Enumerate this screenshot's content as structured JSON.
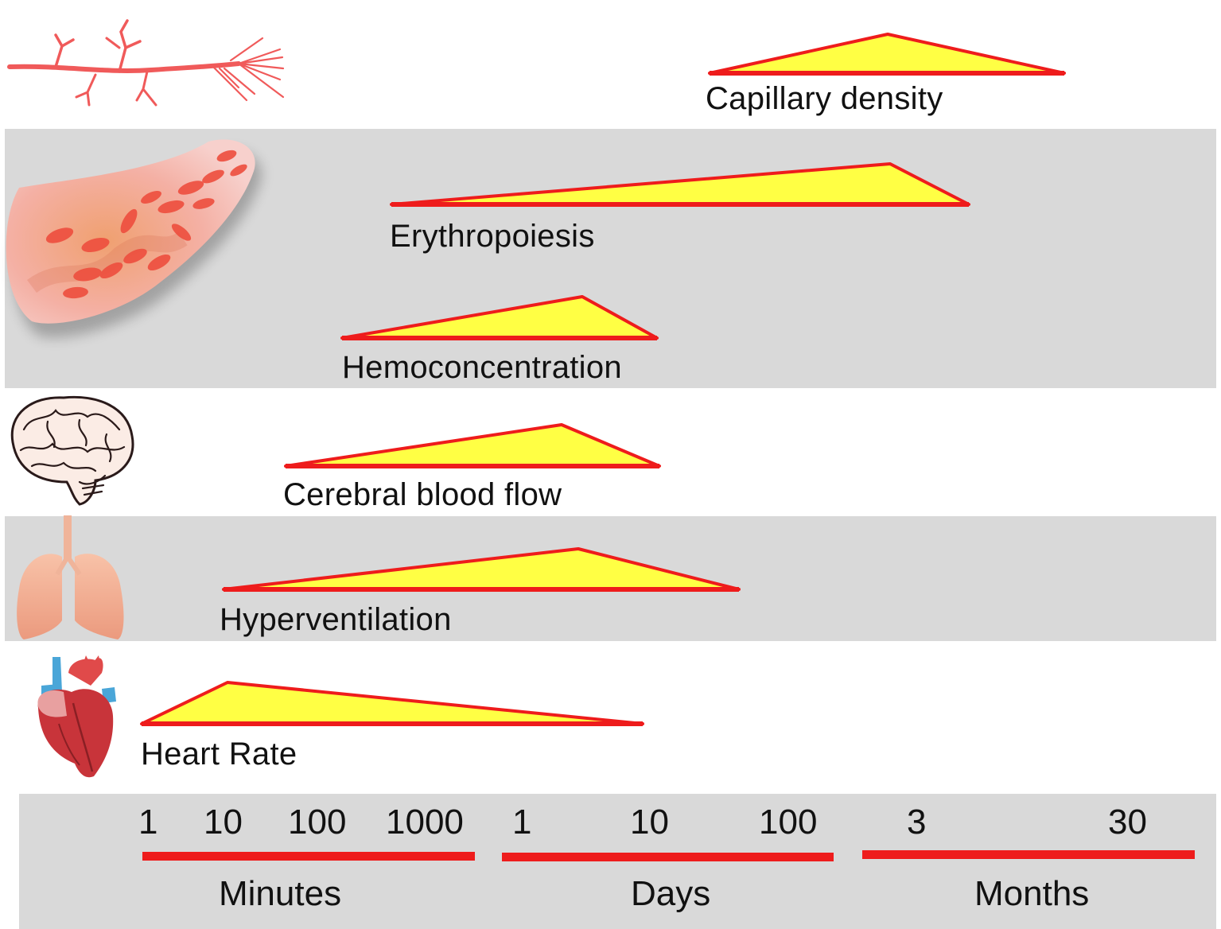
{
  "colors": {
    "band_gray": "#d9d9d9",
    "outline_red": "#ee1c1c",
    "fill_yellow": "#ffff44"
  },
  "rows": [
    {
      "id": "capillary",
      "label": "Capillary density",
      "icon": "capillary-icon"
    },
    {
      "id": "erythro",
      "label": "Erythropoiesis",
      "icon": "red-blood-cells-icon"
    },
    {
      "id": "hemo",
      "label": "Hemoconcentration",
      "icon": "red-blood-cells-icon"
    },
    {
      "id": "cbf",
      "label": "Cerebral blood flow",
      "icon": "brain-icon"
    },
    {
      "id": "hypervent",
      "label": "Hyperventilation",
      "icon": "lungs-icon"
    },
    {
      "id": "hr",
      "label": "Heart Rate",
      "icon": "heart-icon"
    }
  ],
  "axis": {
    "minutes": {
      "label": "Minutes",
      "ticks": [
        "1",
        "10",
        "100",
        "1000"
      ]
    },
    "days": {
      "label": "Days",
      "ticks": [
        "1",
        "10",
        "100"
      ]
    },
    "months": {
      "label": "Months",
      "ticks": [
        "3",
        "30"
      ]
    }
  }
}
